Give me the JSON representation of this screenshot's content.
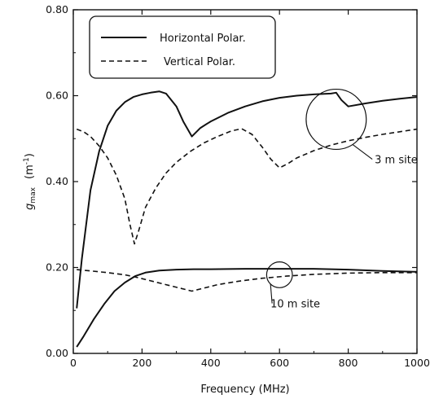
{
  "chart_data": {
    "type": "line",
    "title": "",
    "xlabel": "Frequency (MHz)",
    "ylabel_main": "g",
    "ylabel_sub": "max",
    "ylabel_unit_base": "(m",
    "ylabel_unit_exp": "-1",
    "ylabel_unit_close": ")",
    "xlim": [
      0,
      1000
    ],
    "ylim": [
      0,
      0.8
    ],
    "xticks": [
      0,
      200,
      400,
      600,
      800,
      1000
    ],
    "xtick_labels": [
      "0",
      "200",
      "400",
      "600",
      "800",
      "1000"
    ],
    "yticks": [
      0,
      0.2,
      0.4,
      0.6,
      0.8
    ],
    "ytick_labels": [
      "0.00",
      "0.20",
      "0.40",
      "0.60",
      "0.80"
    ],
    "grid": false,
    "legend_position": "top-left",
    "series": [
      {
        "name": "Horizontal Polar.",
        "style": "solid",
        "group": "3 m site",
        "x": [
          10,
          25,
          50,
          75,
          100,
          125,
          150,
          175,
          200,
          225,
          250,
          270,
          300,
          320,
          345,
          370,
          400,
          450,
          500,
          550,
          600,
          650,
          700,
          750,
          765,
          780,
          800,
          850,
          900,
          950,
          1000
        ],
        "y": [
          0.105,
          0.22,
          0.38,
          0.47,
          0.53,
          0.565,
          0.585,
          0.597,
          0.603,
          0.607,
          0.61,
          0.605,
          0.575,
          0.54,
          0.505,
          0.525,
          0.54,
          0.56,
          0.575,
          0.587,
          0.595,
          0.6,
          0.603,
          0.605,
          0.607,
          0.59,
          0.575,
          0.582,
          0.588,
          0.593,
          0.597
        ]
      },
      {
        "name": "Vertical Polar.",
        "style": "dashed",
        "group": "3 m site",
        "x": [
          10,
          30,
          50,
          75,
          100,
          125,
          150,
          165,
          178,
          190,
          210,
          240,
          270,
          300,
          340,
          380,
          420,
          460,
          490,
          520,
          550,
          575,
          600,
          625,
          650,
          700,
          750,
          800,
          850,
          900,
          950,
          1000
        ],
        "y": [
          0.522,
          0.516,
          0.505,
          0.483,
          0.455,
          0.415,
          0.36,
          0.3,
          0.255,
          0.285,
          0.34,
          0.385,
          0.42,
          0.445,
          0.47,
          0.49,
          0.505,
          0.518,
          0.523,
          0.51,
          0.48,
          0.452,
          0.432,
          0.442,
          0.455,
          0.472,
          0.485,
          0.495,
          0.503,
          0.51,
          0.516,
          0.522
        ]
      },
      {
        "name": "Horizontal Polar.",
        "style": "solid",
        "group": "10 m site",
        "x": [
          10,
          30,
          60,
          90,
          120,
          150,
          180,
          210,
          250,
          300,
          350,
          400,
          500,
          600,
          700,
          800,
          900,
          1000
        ],
        "y": [
          0.015,
          0.04,
          0.08,
          0.115,
          0.145,
          0.165,
          0.18,
          0.188,
          0.193,
          0.195,
          0.196,
          0.196,
          0.197,
          0.197,
          0.197,
          0.195,
          0.192,
          0.19
        ]
      },
      {
        "name": "Vertical Polar.",
        "style": "dashed",
        "group": "10 m site",
        "x": [
          10,
          50,
          100,
          150,
          180,
          220,
          270,
          310,
          345,
          380,
          420,
          480,
          550,
          620,
          700,
          800,
          900,
          1000
        ],
        "y": [
          0.195,
          0.192,
          0.188,
          0.183,
          0.178,
          0.17,
          0.16,
          0.152,
          0.145,
          0.152,
          0.16,
          0.168,
          0.175,
          0.18,
          0.184,
          0.187,
          0.188,
          0.188
        ]
      }
    ],
    "annotations": [
      {
        "text": "3 m site",
        "circle_center": [
          765,
          0.545
        ],
        "circle_radius": 0.07
      },
      {
        "text": "10 m site",
        "circle_center": [
          600,
          0.183
        ],
        "circle_radius": 0.03
      }
    ]
  }
}
